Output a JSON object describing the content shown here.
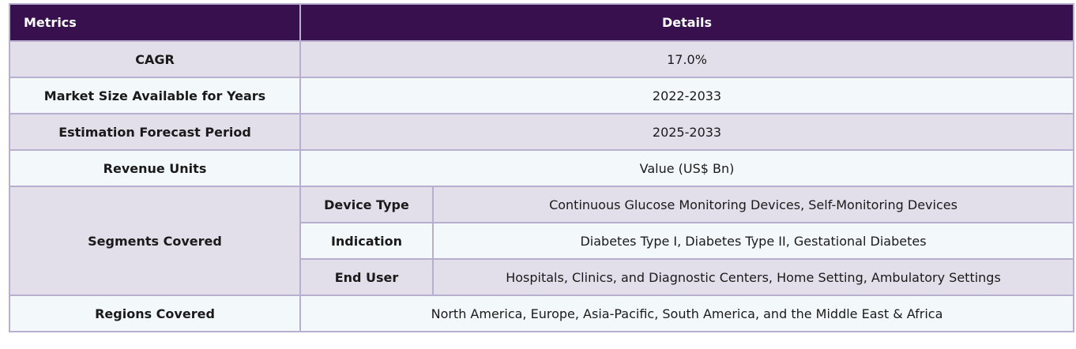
{
  "header": {
    "metrics": "Metrics",
    "details": "Details"
  },
  "rows": {
    "cagr": {
      "label": "CAGR",
      "value": "17.0%"
    },
    "market_size": {
      "label": "Market Size Available for Years",
      "value": "2022-2033"
    },
    "forecast": {
      "label": "Estimation Forecast Period",
      "value": "2025-2033"
    },
    "revenue": {
      "label": "Revenue Units",
      "value": "Value (US$ Bn)"
    },
    "segments": {
      "label": "Segments Covered",
      "items": [
        {
          "label": "Device Type",
          "value": "Continuous Glucose Monitoring Devices, Self-Monitoring Devices"
        },
        {
          "label": "Indication",
          "value": "Diabetes Type I, Diabetes Type II, Gestational Diabetes"
        },
        {
          "label": "End User",
          "value": "Hospitals, Clinics, and Diagnostic Centers, Home Setting, Ambulatory Settings"
        }
      ]
    },
    "regions": {
      "label": "Regions Covered",
      "value": "North America, Europe, Asia-Pacific, South America, and the Middle East & Africa"
    }
  }
}
